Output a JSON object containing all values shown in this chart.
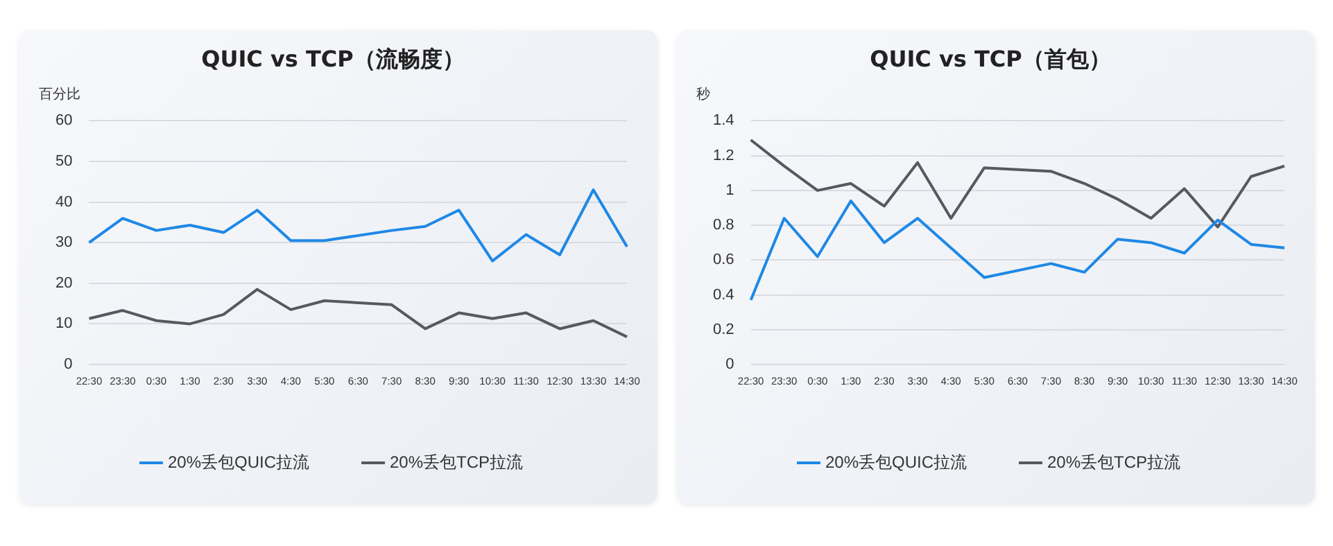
{
  "chart_data": [
    {
      "type": "line",
      "title": "QUIC vs TCP（流畅度）",
      "ylabel": "百分比",
      "categories": [
        "22:30",
        "23:30",
        "0:30",
        "1:30",
        "2:30",
        "3:30",
        "4:30",
        "5:30",
        "6:30",
        "7:30",
        "8:30",
        "9:30",
        "10:30",
        "11:30",
        "12:30",
        "13:30",
        "14:30"
      ],
      "series": [
        {
          "name": "20%丢包QUIC拉流",
          "color": "#1e88e5",
          "values": [
            30,
            36,
            33,
            34.3,
            32.5,
            38,
            30.5,
            30.5,
            null,
            33,
            34,
            38,
            25.5,
            32,
            27,
            43,
            29
          ]
        },
        {
          "name": "20%丢包TCP拉流",
          "color": "#555a60",
          "values": [
            11.3,
            13.3,
            10.8,
            10,
            12.3,
            18.5,
            13.5,
            15.7,
            null,
            14.7,
            8.8,
            12.7,
            11.3,
            12.7,
            8.8,
            10.8,
            6.8
          ]
        }
      ],
      "ylim": [
        0,
        60
      ],
      "yticks": [
        0,
        10,
        20,
        30,
        40,
        50,
        60
      ],
      "grid": "y",
      "legend": "bottom",
      "marker": "none",
      "line_style": "solid"
    },
    {
      "type": "line",
      "title": "QUIC vs TCP（首包）",
      "ylabel": "秒",
      "categories": [
        "22:30",
        "23:30",
        "0:30",
        "1:30",
        "2:30",
        "3:30",
        "4:30",
        "5:30",
        "6:30",
        "7:30",
        "8:30",
        "9:30",
        "10:30",
        "11:30",
        "12:30",
        "13:30",
        "14:30"
      ],
      "series": [
        {
          "name": "20%丢包QUIC拉流",
          "color": "#1e88e5",
          "values": [
            0.37,
            0.84,
            0.62,
            0.94,
            0.7,
            0.84,
            0.67,
            0.5,
            null,
            0.58,
            0.53,
            0.72,
            0.7,
            0.64,
            0.83,
            0.69,
            0.67
          ]
        },
        {
          "name": "20%丢包TCP拉流",
          "color": "#555a60",
          "values": [
            1.29,
            1.14,
            1.0,
            1.04,
            0.91,
            1.16,
            0.84,
            1.13,
            null,
            1.11,
            1.04,
            0.95,
            0.84,
            1.01,
            0.79,
            1.08,
            1.14
          ]
        }
      ],
      "ylim": [
        0,
        1.4
      ],
      "yticks": [
        0,
        0.2,
        0.4,
        0.6,
        0.8,
        1,
        1.2,
        1.4
      ],
      "grid": "y",
      "legend": "bottom",
      "marker": "none",
      "line_style": "solid"
    }
  ]
}
